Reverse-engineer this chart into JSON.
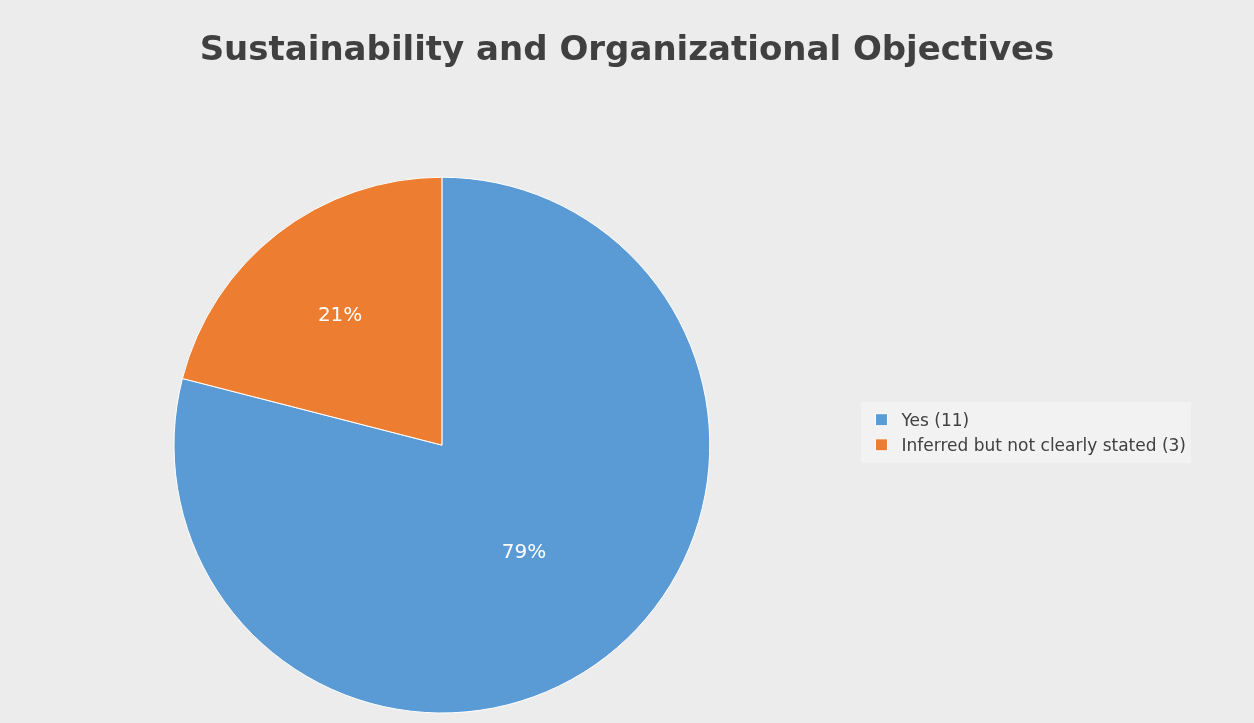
{
  "chart_data": {
    "type": "pie",
    "title": "Sustainability and Organizational Objectives",
    "categories": [
      "Yes (11)",
      "Inferred but not clearly stated (3)"
    ],
    "values": [
      79,
      21
    ],
    "colors": [
      "#5b9bd5",
      "#ed7d31"
    ],
    "value_labels": [
      "79%",
      "21%"
    ],
    "legend": "right"
  }
}
